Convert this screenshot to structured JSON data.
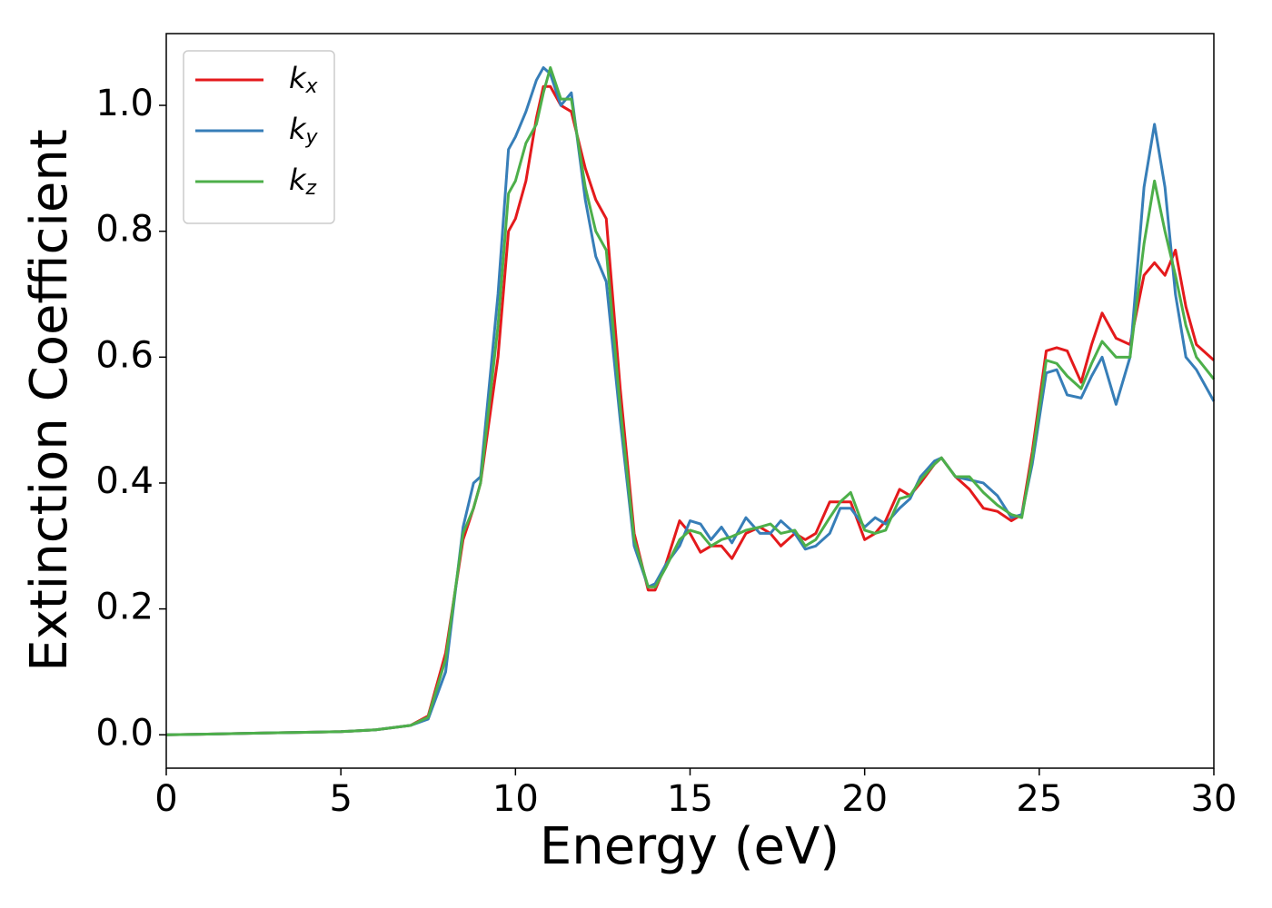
{
  "chart_data": {
    "type": "line",
    "x_label": "Energy (eV)",
    "y_label": "Extinction Coefficient",
    "xlim": [
      0,
      30
    ],
    "ylim": [
      -0.053,
      1.114
    ],
    "xticks": [
      0,
      5,
      10,
      15,
      20,
      25,
      30
    ],
    "yticks": [
      {
        "value": 0,
        "label": "0.0"
      },
      0.2,
      0.4,
      0.6,
      0.8,
      {
        "value": 1,
        "label": "1.0"
      }
    ],
    "legend": "upper left",
    "x": [
      0,
      1,
      2,
      3,
      4,
      5,
      6,
      7,
      7.5,
      8,
      8.5,
      8.8,
      9,
      9.5,
      9.8,
      10,
      10.3,
      10.6,
      10.8,
      11,
      11.3,
      11.6,
      12,
      12.3,
      12.6,
      13,
      13.4,
      13.8,
      14,
      14.3,
      14.7,
      15,
      15.3,
      15.6,
      15.9,
      16.2,
      16.6,
      17,
      17.3,
      17.6,
      18,
      18.3,
      18.6,
      19,
      19.3,
      19.6,
      20,
      20.3,
      20.6,
      21,
      21.3,
      21.6,
      22,
      22.2,
      22.6,
      23,
      23.4,
      23.8,
      24.2,
      24.5,
      24.8,
      25.2,
      25.5,
      25.8,
      26.2,
      26.5,
      26.8,
      27.2,
      27.6,
      28,
      28.3,
      28.6,
      28.9,
      29.2,
      29.5,
      30
    ],
    "series": [
      {
        "name": "kx",
        "color": "#e41a1c",
        "values": [
          0,
          0.001,
          0.002,
          0.003,
          0.004,
          0.005,
          0.008,
          0.015,
          0.03,
          0.13,
          0.31,
          0.36,
          0.4,
          0.6,
          0.8,
          0.82,
          0.88,
          0.98,
          1.03,
          1.03,
          1.0,
          0.99,
          0.9,
          0.85,
          0.82,
          0.55,
          0.32,
          0.23,
          0.23,
          0.27,
          0.34,
          0.32,
          0.29,
          0.3,
          0.3,
          0.28,
          0.32,
          0.33,
          0.32,
          0.3,
          0.32,
          0.31,
          0.32,
          0.37,
          0.37,
          0.37,
          0.31,
          0.32,
          0.34,
          0.39,
          0.38,
          0.4,
          0.43,
          0.44,
          0.41,
          0.39,
          0.36,
          0.355,
          0.34,
          0.35,
          0.45,
          0.61,
          0.615,
          0.61,
          0.56,
          0.62,
          0.67,
          0.63,
          0.62,
          0.73,
          0.75,
          0.73,
          0.77,
          0.68,
          0.62,
          0.595
        ]
      },
      {
        "name": "ky",
        "color": "#377eb8",
        "values": [
          0,
          0.001,
          0.002,
          0.003,
          0.004,
          0.005,
          0.008,
          0.015,
          0.025,
          0.1,
          0.33,
          0.4,
          0.41,
          0.7,
          0.93,
          0.95,
          0.99,
          1.04,
          1.06,
          1.05,
          1.0,
          1.02,
          0.85,
          0.76,
          0.72,
          0.5,
          0.3,
          0.235,
          0.24,
          0.27,
          0.3,
          0.34,
          0.335,
          0.31,
          0.33,
          0.305,
          0.345,
          0.32,
          0.32,
          0.34,
          0.32,
          0.295,
          0.3,
          0.32,
          0.36,
          0.36,
          0.33,
          0.345,
          0.335,
          0.36,
          0.375,
          0.41,
          0.435,
          0.44,
          0.41,
          0.405,
          0.4,
          0.38,
          0.345,
          0.35,
          0.43,
          0.575,
          0.58,
          0.54,
          0.535,
          0.57,
          0.6,
          0.525,
          0.6,
          0.87,
          0.97,
          0.87,
          0.7,
          0.6,
          0.58,
          0.53
        ]
      },
      {
        "name": "kz",
        "color": "#4daf4a",
        "values": [
          0,
          0.001,
          0.002,
          0.003,
          0.004,
          0.005,
          0.008,
          0.015,
          0.028,
          0.12,
          0.32,
          0.36,
          0.4,
          0.65,
          0.86,
          0.88,
          0.94,
          0.97,
          1.02,
          1.06,
          1.01,
          1.01,
          0.87,
          0.8,
          0.77,
          0.52,
          0.31,
          0.235,
          0.235,
          0.265,
          0.31,
          0.325,
          0.32,
          0.3,
          0.31,
          0.315,
          0.325,
          0.33,
          0.335,
          0.32,
          0.325,
          0.3,
          0.31,
          0.345,
          0.37,
          0.385,
          0.325,
          0.32,
          0.325,
          0.375,
          0.38,
          0.405,
          0.43,
          0.44,
          0.41,
          0.41,
          0.385,
          0.365,
          0.35,
          0.345,
          0.44,
          0.595,
          0.59,
          0.57,
          0.55,
          0.59,
          0.625,
          0.6,
          0.6,
          0.78,
          0.88,
          0.8,
          0.73,
          0.65,
          0.6,
          0.565
        ]
      }
    ]
  }
}
